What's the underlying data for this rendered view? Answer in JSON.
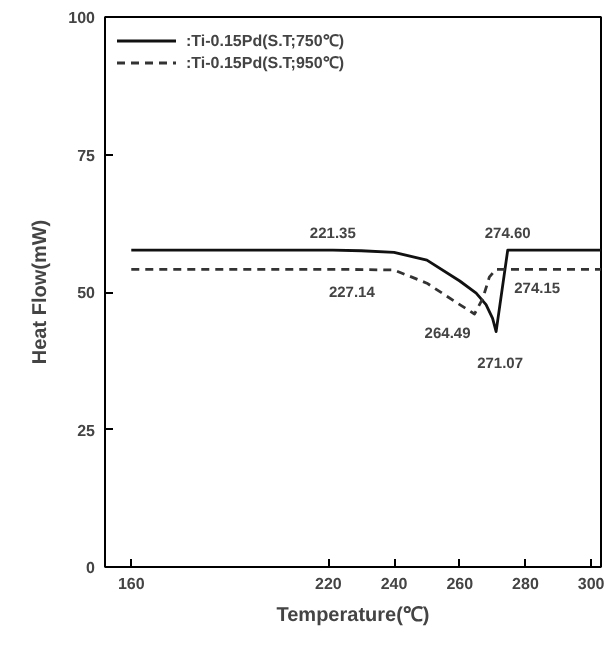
{
  "chart_data": {
    "type": "line",
    "xlabel": "Temperature(℃)",
    "ylabel": "Heat Flow(mW)",
    "xlim": [
      152,
      303
    ],
    "ylim": [
      0,
      100
    ],
    "xticks": [
      160,
      220,
      240,
      260,
      280,
      300
    ],
    "yticks": [
      0,
      25,
      50,
      75,
      100
    ],
    "grid": false,
    "legend": "top left",
    "marker": "none",
    "series": [
      {
        "name": ":Ti-0.15Pd(S.T;750℃)",
        "color": "#111111",
        "line_style": "solid",
        "x": [
          160,
          221.35,
          230,
          240,
          250,
          260,
          265,
          268,
          270,
          271.07,
          274.6,
          303
        ],
        "values": [
          57.6,
          57.6,
          57.5,
          57.2,
          55.8,
          52,
          49.8,
          47.7,
          45.2,
          42.8,
          57.6,
          57.6
        ]
      },
      {
        "name": ":Ti-0.15Pd(S.T;950℃)",
        "color": "#333333",
        "line_style": "dashed",
        "x": [
          160,
          227.14,
          240,
          250,
          260,
          264.49,
          267,
          269,
          271,
          274.15,
          303
        ],
        "values": [
          54.1,
          54.1,
          54,
          51.6,
          47.7,
          46,
          48.8,
          52.7,
          54.1,
          54.1,
          54.1
        ]
      }
    ],
    "annotations": [
      {
        "text": "221.35",
        "x": 221.35,
        "y": 57.6
      },
      {
        "text": "227.14",
        "x": 227.14,
        "y": 54.1
      },
      {
        "text": "264.49",
        "x": 264.49,
        "y": 46
      },
      {
        "text": "271.07",
        "x": 271.07,
        "y": 42.8
      },
      {
        "text": "274.60",
        "x": 274.6,
        "y": 57.6
      },
      {
        "text": "274.15",
        "x": 274.15,
        "y": 54.1
      }
    ]
  }
}
